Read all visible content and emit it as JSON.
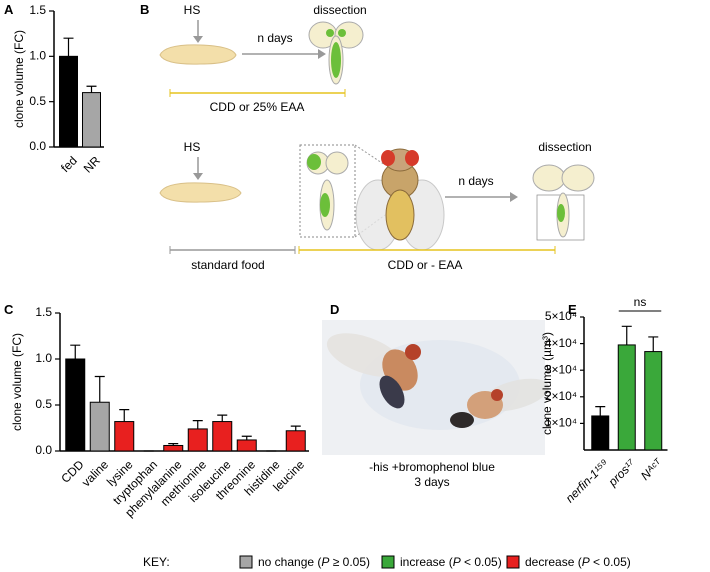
{
  "chart_data": [
    {
      "type": "bar",
      "panel": "A",
      "ylabel": "clone volume (FC)",
      "categories": [
        "fed",
        "NR"
      ],
      "values": [
        1.0,
        0.6
      ],
      "errors": [
        0.2,
        0.07
      ],
      "colors": [
        "#000000",
        "#a6a6a6"
      ],
      "ylim": [
        0,
        1.5
      ],
      "yticks": [
        {
          "value": 0,
          "label": "0.0"
        },
        {
          "value": 0.5,
          "label": "0.5"
        },
        {
          "value": 1,
          "label": "1.0"
        },
        {
          "value": 1.5,
          "label": "1.5"
        }
      ]
    },
    {
      "type": "bar",
      "panel": "C",
      "ylabel": "clone volume (FC)",
      "categories": [
        "CDD",
        "valine",
        "lysine",
        "tryptophan",
        "phenylalanine",
        "methionine",
        "isoleucine",
        "threonine",
        "histidine",
        "leucine"
      ],
      "values": [
        1.0,
        0.53,
        0.32,
        0,
        0.06,
        0.24,
        0.32,
        0.12,
        0,
        0.22
      ],
      "errors": [
        0.15,
        0.28,
        0.13,
        0,
        0.02,
        0.09,
        0.07,
        0.04,
        0,
        0.05
      ],
      "colors": [
        "#000000",
        "#a6a6a6",
        "#e8201f",
        "#e8201f",
        "#e8201f",
        "#e8201f",
        "#e8201f",
        "#e8201f",
        "#e8201f",
        "#e8201f"
      ],
      "ylim": [
        0,
        1.5
      ],
      "yticks": [
        {
          "value": 0,
          "label": "0.0"
        },
        {
          "value": 0.5,
          "label": "0.5"
        },
        {
          "value": 1,
          "label": "1.0"
        },
        {
          "value": 1.5,
          "label": "1.5"
        }
      ]
    },
    {
      "type": "bar",
      "panel": "E",
      "ylabel": "clone volume (µm³)",
      "categories": [
        "nerfin-1¹⁵⁹",
        "pros¹⁷",
        "Nᴬᶜᵀ"
      ],
      "values": [
        12800,
        39500,
        37000
      ],
      "errors": [
        3500,
        7000,
        5500
      ],
      "colors": [
        "#000000",
        "#3aa83a",
        "#3aa83a"
      ],
      "annotation": "ns",
      "ylim": [
        0,
        50000
      ],
      "yticks": [
        {
          "value": 10000,
          "label": "1×10⁴"
        },
        {
          "value": 20000,
          "label": "2×10⁴"
        },
        {
          "value": 30000,
          "label": "3×10⁴"
        },
        {
          "value": 40000,
          "label": "4×10⁴"
        },
        {
          "value": 50000,
          "label": "5×10⁴"
        }
      ]
    }
  ],
  "diagram": {
    "panel": "B",
    "top": {
      "hs": "HS",
      "arrow": "n days",
      "end": "dissection",
      "diet": "CDD or 25% EAA"
    },
    "bottom": {
      "hs": "HS",
      "arrow": "n days",
      "end": "dissection",
      "food": "standard food",
      "diet": "CDD or - EAA"
    }
  },
  "photo": {
    "panel": "D",
    "caption": [
      "-his +bromophenol blue",
      "3 days"
    ]
  },
  "key": {
    "title": "KEY:",
    "items": [
      {
        "color": "#a6a6a6",
        "text": "no change (",
        "stat": "P",
        "rest": " ≥ 0.05)"
      },
      {
        "color": "#3aa83a",
        "text": "increase (",
        "stat": "P",
        "rest": " < 0.05)"
      },
      {
        "color": "#e8201f",
        "text": "decrease (",
        "stat": "P",
        "rest": " < 0.05)"
      }
    ]
  }
}
